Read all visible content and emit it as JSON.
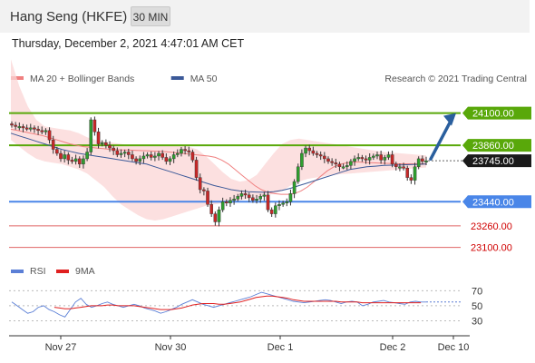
{
  "header": {
    "title": "Hang Seng (HKFE)",
    "interval": "30 MIN"
  },
  "timestamp": "Thursday, December 2, 2021 4:47:01 AM CET",
  "legend": [
    {
      "label": "MA 20 + Bollinger Bands",
      "color": "#f08080"
    },
    {
      "label": "MA 50",
      "color": "#3b5998"
    }
  ],
  "copyright": "Research © 2021 Trading Central",
  "rsi_legend": [
    {
      "label": "RSI",
      "color": "#5b7fd6"
    },
    {
      "label": "9MA",
      "color": "#e02020"
    }
  ],
  "chart_data": [
    {
      "type": "candlestick",
      "title": "",
      "x_ticks": [
        "Nov 27",
        "Nov 30",
        "Dec 1",
        "Dec 2",
        "Dec 10"
      ],
      "ylim": [
        23050,
        24300
      ],
      "last_price": 23745.0,
      "key_levels": [
        {
          "value": 24100.0,
          "label": "24100.00",
          "kind": "resistance",
          "color": "#59a80a"
        },
        {
          "value": 23860.0,
          "label": "23860.00",
          "kind": "resistance",
          "color": "#59a80a"
        },
        {
          "value": 23440.0,
          "label": "23440.00",
          "kind": "pivot",
          "color": "#4a86e8"
        },
        {
          "value": 23260.0,
          "label": "23260.00",
          "kind": "support",
          "color": "#e06666"
        },
        {
          "value": 23100.0,
          "label": "23100.00",
          "kind": "support",
          "color": "#e06666"
        }
      ],
      "forecast": {
        "from": 23745,
        "to": 24100,
        "direction": "up"
      },
      "close_series": [
        24010,
        24000,
        24000,
        23990,
        23985,
        23990,
        23980,
        23970,
        23960,
        23970,
        23900,
        23830,
        23800,
        23760,
        23790,
        23750,
        23740,
        23760,
        23720,
        23760,
        23810,
        24050,
        23960,
        23870,
        23880,
        23860,
        23840,
        23820,
        23790,
        23800,
        23810,
        23790,
        23760,
        23740,
        23760,
        23780,
        23790,
        23770,
        23780,
        23800,
        23770,
        23740,
        23760,
        23790,
        23800,
        23830,
        23820,
        23810,
        23750,
        23620,
        23530,
        23520,
        23420,
        23350,
        23290,
        23380,
        23440,
        23430,
        23450,
        23460,
        23480,
        23500,
        23490,
        23470,
        23450,
        23460,
        23480,
        23490,
        23380,
        23350,
        23410,
        23420,
        23430,
        23440,
        23500,
        23590,
        23700,
        23800,
        23840,
        23820,
        23800,
        23790,
        23780,
        23760,
        23740,
        23730,
        23720,
        23700,
        23700,
        23710,
        23740,
        23760,
        23770,
        23760,
        23750,
        23770,
        23780,
        23790,
        23750,
        23770,
        23790,
        23720,
        23700,
        23700,
        23690,
        23620,
        23600,
        23700,
        23760,
        23740,
        23745
      ],
      "ma20": [
        23980,
        23970,
        23960,
        23950,
        23940,
        23930,
        23915,
        23900,
        23885,
        23870,
        23860,
        23850,
        23845,
        23840,
        23835,
        23830,
        23828,
        23826,
        23824,
        23822,
        23820,
        23818,
        23816,
        23814,
        23810,
        23805,
        23800,
        23795,
        23790,
        23785,
        23780,
        23770,
        23750,
        23720,
        23680,
        23640,
        23600,
        23560,
        23530,
        23510,
        23500,
        23495,
        23495,
        23500,
        23520,
        23550,
        23590,
        23630,
        23670,
        23700,
        23720,
        23730,
        23735,
        23735,
        23732,
        23730,
        23728,
        23726,
        23724,
        23722,
        23722,
        23722,
        23722,
        23722
      ],
      "ma50": [
        23950,
        23930,
        23910,
        23890,
        23870,
        23850,
        23830,
        23815,
        23800,
        23790,
        23780,
        23770,
        23760,
        23750,
        23740,
        23730,
        23720,
        23700,
        23680,
        23660,
        23640,
        23620,
        23600,
        23580,
        23560,
        23545,
        23530,
        23520,
        23515,
        23512,
        23510,
        23515,
        23525,
        23540,
        23560,
        23580,
        23600,
        23620,
        23640,
        23660,
        23680,
        23690,
        23700,
        23705,
        23710,
        23712,
        23714,
        23716,
        23718,
        23720
      ],
      "bollinger_upper": [
        24500,
        24300,
        24150,
        24050,
        24000,
        23990,
        23980,
        23970,
        23950,
        23920,
        23900,
        23890,
        23880,
        23870,
        23860,
        23860,
        23860,
        23860,
        23860,
        23860,
        23860,
        23850,
        23830,
        23780,
        23720,
        23660,
        23610,
        23590,
        23600,
        23640,
        23720,
        23800,
        23870,
        23900,
        23910,
        23900,
        23890,
        23880,
        23870,
        23860,
        23850,
        23840,
        23830,
        23820,
        23810,
        23805,
        23800,
        23795,
        23790,
        23785
      ],
      "bollinger_lower": [
        23900,
        23850,
        23800,
        23760,
        23740,
        23730,
        23720,
        23700,
        23680,
        23650,
        23600,
        23550,
        23480,
        23420,
        23380,
        23340,
        23310,
        23300,
        23310,
        23330,
        23350,
        23370,
        23390,
        23410,
        23420,
        23430,
        23440,
        23450,
        23460,
        23470,
        23480,
        23500,
        23520,
        23560,
        23590,
        23610,
        23620,
        23630,
        23640,
        23645,
        23650,
        23655,
        23660,
        23665,
        23670,
        23675,
        23680,
        23685,
        23690,
        23695
      ]
    },
    {
      "type": "line",
      "title": "",
      "series": [
        {
          "name": "RSI",
          "values": [
            55,
            50,
            45,
            40,
            42,
            48,
            50,
            45,
            42,
            38,
            35,
            45,
            55,
            60,
            52,
            48,
            50,
            53,
            55,
            52,
            50,
            48,
            50,
            52,
            50,
            47,
            45,
            43,
            40,
            42,
            45,
            48,
            52,
            55,
            58,
            55,
            52,
            50,
            48,
            50,
            52,
            54,
            56,
            58,
            60,
            62,
            65,
            68,
            66,
            64,
            62,
            60,
            58,
            56,
            55,
            54,
            55,
            56,
            57,
            58,
            57,
            55,
            53,
            55,
            56,
            55,
            50,
            52,
            55,
            56,
            57,
            55,
            54,
            53,
            52,
            55,
            56,
            55,
            55
          ]
        },
        {
          "name": "9MA",
          "values": [
            null,
            null,
            null,
            null,
            null,
            null,
            null,
            null,
            48,
            47,
            46,
            46,
            47,
            48,
            49,
            50,
            50,
            50,
            51,
            51,
            50,
            50,
            50,
            50,
            49,
            48,
            47,
            46,
            45,
            45,
            45,
            46,
            47,
            49,
            51,
            52,
            53,
            53,
            53,
            52,
            52,
            53,
            54,
            55,
            57,
            59,
            61,
            62,
            63,
            63,
            62,
            61,
            60,
            58,
            57,
            56,
            56,
            56,
            56,
            56,
            56,
            56,
            55,
            55,
            55,
            55,
            54,
            54,
            54,
            54,
            54,
            54,
            54,
            54,
            54,
            54,
            54,
            54,
            null
          ]
        }
      ],
      "y_ticks": [
        70,
        50,
        30
      ],
      "ylim": [
        10,
        85
      ]
    }
  ]
}
